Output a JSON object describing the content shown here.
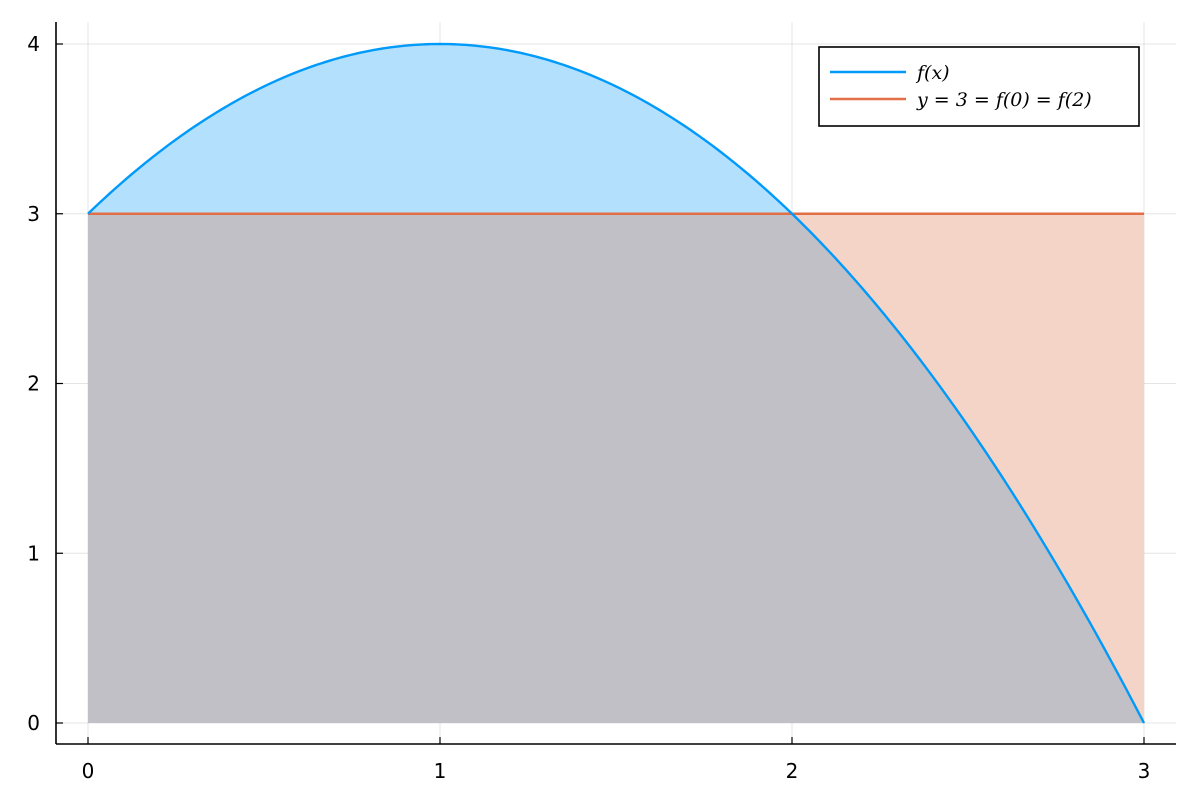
{
  "chart_data": {
    "type": "area",
    "title": "",
    "xlabel": "",
    "ylabel": "",
    "xlim": [
      0,
      3
    ],
    "ylim": [
      0,
      4
    ],
    "grid": true,
    "legend_position": "top-right",
    "x_ticks": [
      "0",
      "1",
      "2",
      "3"
    ],
    "y_ticks": [
      "0",
      "1",
      "2",
      "3",
      "4"
    ],
    "x": [
      0,
      0.25,
      0.5,
      0.75,
      1,
      1.25,
      1.5,
      1.75,
      2,
      2.25,
      2.5,
      2.75,
      3
    ],
    "series": [
      {
        "name": "f(x)",
        "values": [
          3,
          3.4375,
          3.75,
          3.9375,
          4,
          3.9375,
          3.75,
          3.4375,
          3,
          2.4375,
          1.75,
          0.9375,
          0
        ],
        "line_color": "#009AFA",
        "fill_color": "#B3E0FD"
      },
      {
        "name": "y = 3 = f(0) = f(2)",
        "values": [
          3,
          3,
          3,
          3,
          3,
          3,
          3,
          3,
          3,
          3,
          3,
          3,
          3
        ],
        "line_color": "#E26F46",
        "fill_color": "#F5D4C8"
      }
    ],
    "overlap_fill_color": "#C2C0C7"
  }
}
